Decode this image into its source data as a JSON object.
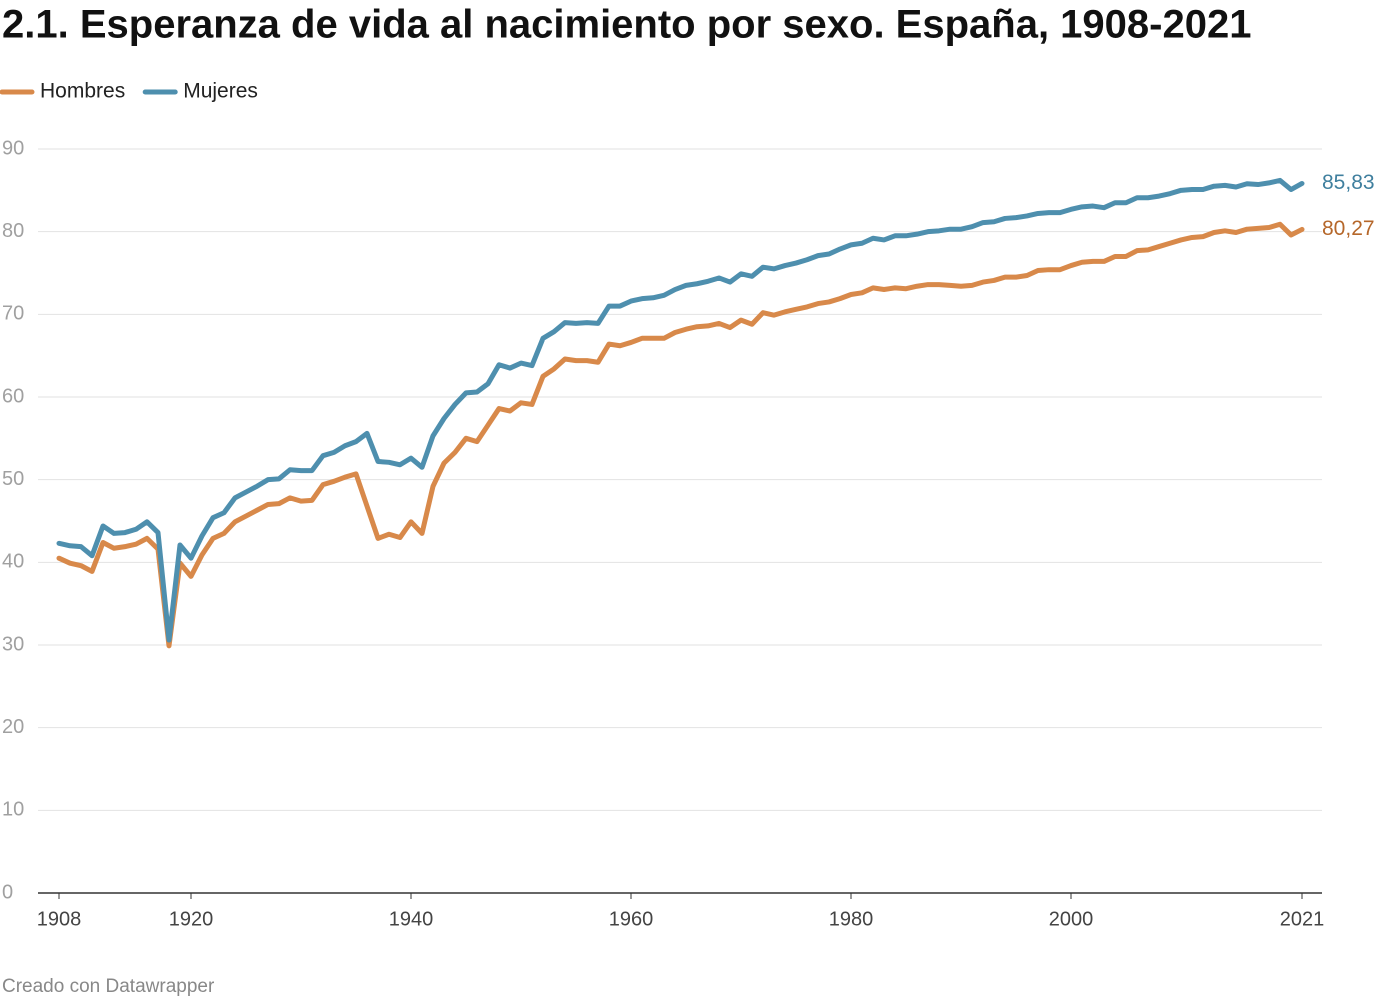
{
  "chart_data": {
    "type": "line",
    "title": "2.1. Esperanza de vida al nacimiento por sexo. España, 1908-2021",
    "source": "Creado con Datawrapper",
    "x": [
      1908,
      1909,
      1910,
      1911,
      1912,
      1913,
      1914,
      1915,
      1916,
      1917,
      1918,
      1919,
      1920,
      1921,
      1922,
      1923,
      1924,
      1925,
      1926,
      1927,
      1928,
      1929,
      1930,
      1931,
      1932,
      1933,
      1934,
      1935,
      1936,
      1937,
      1938,
      1939,
      1940,
      1941,
      1942,
      1943,
      1944,
      1945,
      1946,
      1947,
      1948,
      1949,
      1950,
      1951,
      1952,
      1953,
      1954,
      1955,
      1956,
      1957,
      1958,
      1959,
      1960,
      1961,
      1962,
      1963,
      1964,
      1965,
      1966,
      1967,
      1968,
      1969,
      1970,
      1971,
      1972,
      1973,
      1974,
      1975,
      1976,
      1977,
      1978,
      1979,
      1980,
      1981,
      1982,
      1983,
      1984,
      1985,
      1986,
      1987,
      1988,
      1989,
      1990,
      1991,
      1992,
      1993,
      1994,
      1995,
      1996,
      1997,
      1998,
      1999,
      2000,
      2001,
      2002,
      2003,
      2004,
      2005,
      2006,
      2007,
      2008,
      2009,
      2010,
      2011,
      2012,
      2013,
      2014,
      2015,
      2016,
      2017,
      2018,
      2019,
      2020,
      2021
    ],
    "series": [
      {
        "name": "Hombres",
        "color": "#d8894a",
        "label_color": "#b5672a",
        "values": [
          40.5,
          39.9,
          39.6,
          38.9,
          42.4,
          41.7,
          41.9,
          42.2,
          42.9,
          41.6,
          29.9,
          39.9,
          38.3,
          40.9,
          42.9,
          43.5,
          44.9,
          45.6,
          46.3,
          47.0,
          47.1,
          47.8,
          47.4,
          47.5,
          49.4,
          49.8,
          50.3,
          50.7,
          46.8,
          42.9,
          43.4,
          43.0,
          44.9,
          43.5,
          49.2,
          52.0,
          53.3,
          55.0,
          54.6,
          56.6,
          58.6,
          58.3,
          59.3,
          59.1,
          62.5,
          63.4,
          64.6,
          64.4,
          64.4,
          64.2,
          66.4,
          66.2,
          66.6,
          67.1,
          67.1,
          67.1,
          67.8,
          68.2,
          68.5,
          68.6,
          68.9,
          68.4,
          69.3,
          68.8,
          70.2,
          69.9,
          70.3,
          70.6,
          70.9,
          71.3,
          71.5,
          71.9,
          72.4,
          72.6,
          73.2,
          73.0,
          73.2,
          73.1,
          73.4,
          73.6,
          73.6,
          73.5,
          73.4,
          73.5,
          73.9,
          74.1,
          74.5,
          74.5,
          74.7,
          75.3,
          75.4,
          75.4,
          75.9,
          76.3,
          76.4,
          76.4,
          77.0,
          77.0,
          77.7,
          77.8,
          78.2,
          78.6,
          79.0,
          79.3,
          79.4,
          79.9,
          80.1,
          79.9,
          80.3,
          80.4,
          80.5,
          80.9,
          79.6,
          80.27
        ],
        "value_labels": [
          null,
          null,
          null,
          null,
          null,
          null,
          null,
          null,
          null,
          null,
          null,
          null,
          null,
          null,
          null,
          null,
          null,
          null,
          null,
          null,
          null,
          null,
          null,
          null,
          null,
          null,
          null,
          null,
          null,
          null,
          null,
          null,
          null,
          null,
          null,
          null,
          null,
          null,
          null,
          null,
          null,
          null,
          null,
          null,
          null,
          null,
          null,
          null,
          null,
          null,
          null,
          null,
          null,
          null,
          null,
          null,
          null,
          null,
          null,
          null,
          null,
          null,
          null,
          null,
          null,
          null,
          null,
          null,
          null,
          null,
          null,
          null,
          null,
          null,
          null,
          null,
          null,
          null,
          null,
          null,
          null,
          null,
          null,
          null,
          null,
          null,
          null,
          null,
          null,
          null,
          null,
          null,
          null,
          null,
          null,
          null,
          null,
          null,
          null,
          null,
          null,
          null,
          null,
          null,
          null,
          null,
          null,
          null,
          null,
          null,
          null,
          null,
          null,
          "80,27"
        ]
      },
      {
        "name": "Mujeres",
        "color": "#4e8fae",
        "label_color": "#3f7f9e",
        "values": [
          42.3,
          42.0,
          41.9,
          40.8,
          44.4,
          43.5,
          43.6,
          44.0,
          44.9,
          43.6,
          30.6,
          42.1,
          40.5,
          43.2,
          45.4,
          46.0,
          47.8,
          48.5,
          49.2,
          50.0,
          50.1,
          51.2,
          51.1,
          51.1,
          52.9,
          53.3,
          54.1,
          54.6,
          55.6,
          52.2,
          52.1,
          51.8,
          52.6,
          51.5,
          55.3,
          57.4,
          59.1,
          60.5,
          60.6,
          61.6,
          63.9,
          63.5,
          64.1,
          63.8,
          67.1,
          67.9,
          69.0,
          68.9,
          69.0,
          68.9,
          71.0,
          71.0,
          71.6,
          71.9,
          72.0,
          72.3,
          73.0,
          73.5,
          73.7,
          74.0,
          74.4,
          73.9,
          74.9,
          74.6,
          75.7,
          75.5,
          75.9,
          76.2,
          76.6,
          77.1,
          77.3,
          77.9,
          78.4,
          78.6,
          79.2,
          79.0,
          79.5,
          79.5,
          79.7,
          80.0,
          80.1,
          80.3,
          80.3,
          80.6,
          81.1,
          81.2,
          81.6,
          81.7,
          81.9,
          82.2,
          82.3,
          82.3,
          82.7,
          83.0,
          83.1,
          82.9,
          83.5,
          83.5,
          84.1,
          84.1,
          84.3,
          84.6,
          85.0,
          85.1,
          85.1,
          85.5,
          85.6,
          85.4,
          85.8,
          85.7,
          85.9,
          86.2,
          85.1,
          85.83
        ],
        "value_labels": [
          null,
          null,
          null,
          null,
          null,
          null,
          null,
          null,
          null,
          null,
          null,
          null,
          null,
          null,
          null,
          null,
          null,
          null,
          null,
          null,
          null,
          null,
          null,
          null,
          null,
          null,
          null,
          null,
          null,
          null,
          null,
          null,
          null,
          null,
          null,
          null,
          null,
          null,
          null,
          null,
          null,
          null,
          null,
          null,
          null,
          null,
          null,
          null,
          null,
          null,
          null,
          null,
          null,
          null,
          null,
          null,
          null,
          null,
          null,
          null,
          null,
          null,
          null,
          null,
          null,
          null,
          null,
          null,
          null,
          null,
          null,
          null,
          null,
          null,
          null,
          null,
          null,
          null,
          null,
          null,
          null,
          null,
          null,
          null,
          null,
          null,
          null,
          null,
          null,
          null,
          null,
          null,
          null,
          null,
          null,
          null,
          null,
          null,
          null,
          null,
          null,
          null,
          null,
          null,
          null,
          null,
          null,
          null,
          null,
          null,
          null,
          null,
          null,
          "85,83"
        ]
      }
    ],
    "xlim": [
      1908,
      2021
    ],
    "xticks": [
      1908,
      1920,
      1940,
      1960,
      1980,
      2000,
      2021
    ],
    "ylim": [
      0,
      90
    ],
    "yticks": [
      0,
      10,
      20,
      30,
      40,
      50,
      60,
      70,
      80,
      90
    ],
    "grid": true
  }
}
